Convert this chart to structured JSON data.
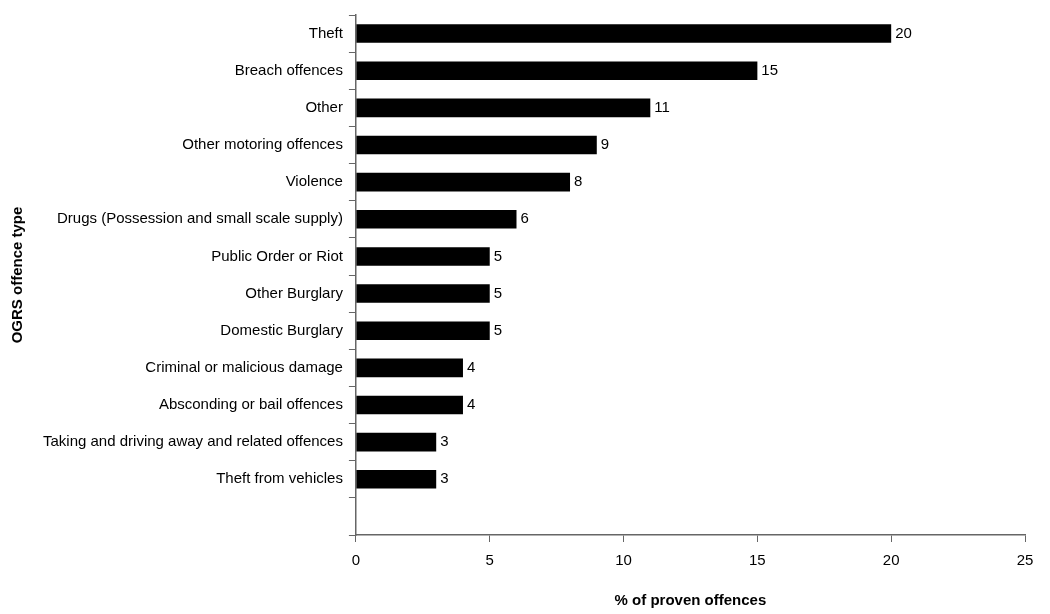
{
  "chart_data": {
    "type": "bar",
    "orientation": "horizontal",
    "xlabel": "% of proven offences",
    "ylabel": "OGRS offence type",
    "categories": [
      "Theft",
      "Breach offences",
      "Other",
      "Other motoring offences",
      "Violence",
      "Drugs (Possession and small scale supply)",
      "Public Order or Riot",
      "Other Burglary",
      "Domestic Burglary",
      "Criminal or malicious damage",
      "Absconding or bail offences",
      "Taking and driving away and related offences",
      "Theft from vehicles",
      null
    ],
    "values": [
      20,
      15,
      11,
      9,
      8,
      6,
      5,
      5,
      5,
      4,
      4,
      3,
      3,
      null
    ],
    "color": "#000000",
    "xlim": [
      0,
      25
    ],
    "xticks": [
      0,
      5,
      10,
      15,
      20,
      25
    ],
    "data_labels": true,
    "grid": false,
    "legend": false
  }
}
